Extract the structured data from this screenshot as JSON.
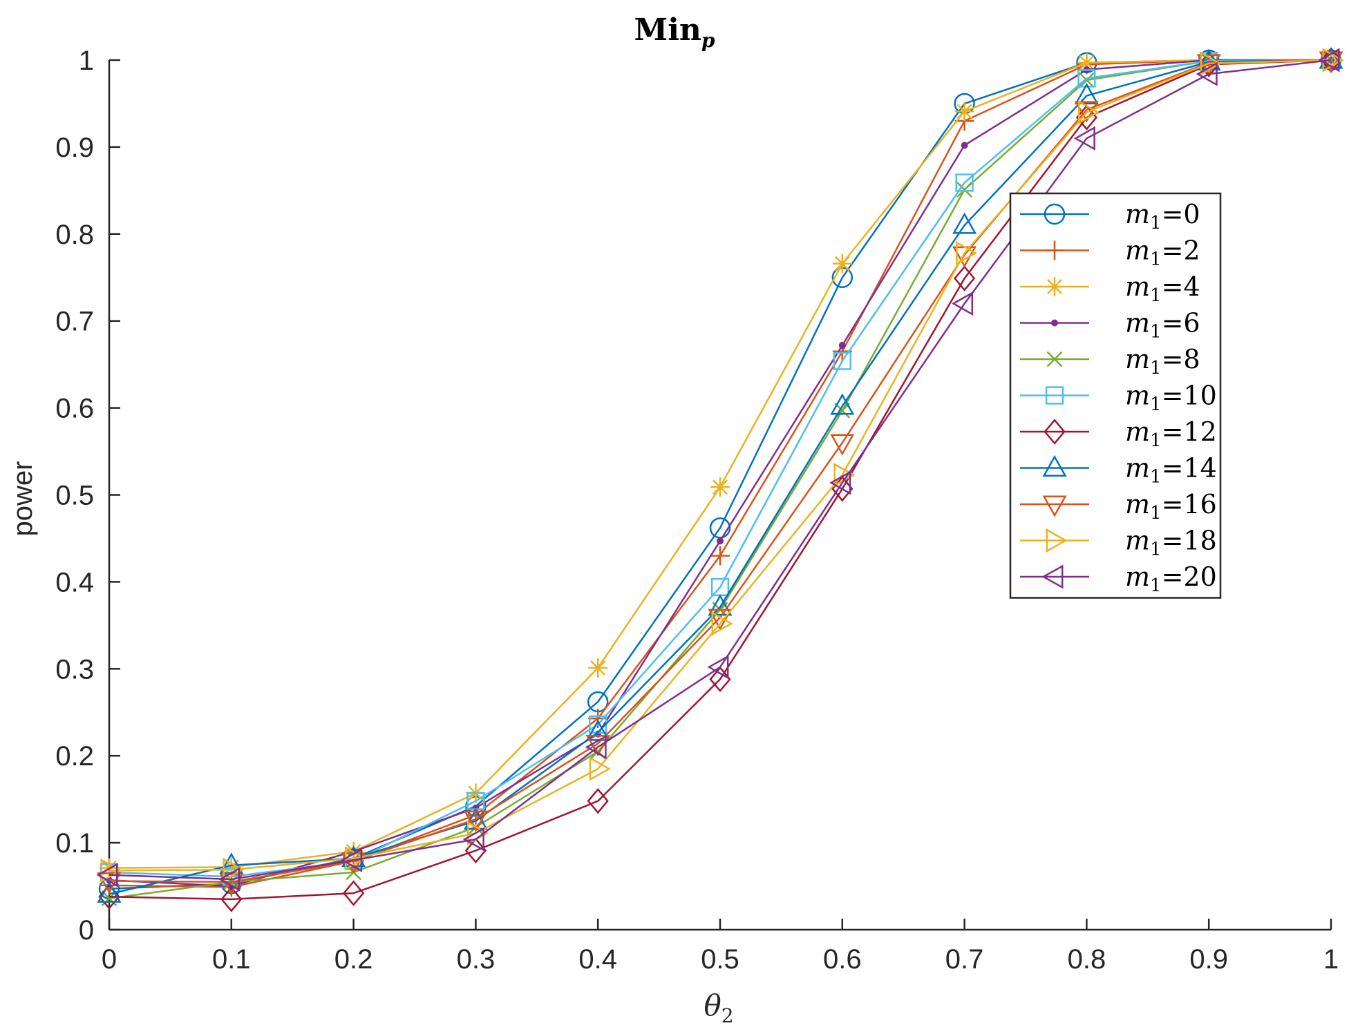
{
  "chart_data": {
    "type": "line",
    "title": "Min",
    "title_sub": "p",
    "xlabel": "θ",
    "xlabel_sub": "2",
    "ylabel": "power",
    "xlim": [
      0,
      1
    ],
    "ylim": [
      0,
      1
    ],
    "grid": false,
    "legend_position": "right",
    "x": [
      0,
      0.1,
      0.2,
      0.3,
      0.4,
      0.5,
      0.6,
      0.7,
      0.8,
      0.9,
      1
    ],
    "x_tick_labels": [
      "0",
      "0.1",
      "0.2",
      "0.3",
      "0.4",
      "0.5",
      "0.6",
      "0.7",
      "0.8",
      "0.9",
      "1"
    ],
    "y_tick_labels": [
      "0",
      "0.1",
      "0.2",
      "0.3",
      "0.4",
      "0.5",
      "0.6",
      "0.7",
      "0.8",
      "0.9",
      "1"
    ],
    "series": [
      {
        "name": "m1=0",
        "label_var": "m",
        "label_sub": "1",
        "label_val": "=0",
        "color": "#0072BD",
        "marker": "circle",
        "values": [
          0.047,
          0.053,
          0.082,
          0.142,
          0.262,
          0.462,
          0.75,
          0.95,
          0.997,
          1.0,
          1.0
        ]
      },
      {
        "name": "m1=2",
        "label_var": "m",
        "label_sub": "1",
        "label_val": "=2",
        "color": "#D95319",
        "marker": "plus",
        "values": [
          0.051,
          0.049,
          0.079,
          0.132,
          0.243,
          0.43,
          0.665,
          0.93,
          0.995,
          1.0,
          1.0
        ]
      },
      {
        "name": "m1=4",
        "label_var": "m",
        "label_sub": "1",
        "label_val": "=4",
        "color": "#EDB120",
        "marker": "asterisk",
        "values": [
          0.071,
          0.072,
          0.09,
          0.157,
          0.301,
          0.509,
          0.766,
          0.941,
          0.997,
          1.0,
          1.0
        ]
      },
      {
        "name": "m1=6",
        "label_var": "m",
        "label_sub": "1",
        "label_val": "=6",
        "color": "#7E2F8E",
        "marker": "dot",
        "values": [
          0.057,
          0.05,
          0.09,
          0.14,
          0.225,
          0.447,
          0.672,
          0.902,
          0.989,
          1.0,
          1.0
        ]
      },
      {
        "name": "m1=8",
        "label_var": "m",
        "label_sub": "1",
        "label_val": "=8",
        "color": "#77AC30",
        "marker": "x",
        "values": [
          0.036,
          0.055,
          0.066,
          0.118,
          0.205,
          0.368,
          0.597,
          0.851,
          0.977,
          0.999,
          1.0
        ]
      },
      {
        "name": "m1=10",
        "label_var": "m",
        "label_sub": "1",
        "label_val": "=10",
        "color": "#4DBEEE",
        "marker": "square",
        "values": [
          0.066,
          0.061,
          0.079,
          0.148,
          0.236,
          0.394,
          0.654,
          0.859,
          0.979,
          0.999,
          1.0
        ]
      },
      {
        "name": "m1=12",
        "label_var": "m",
        "label_sub": "1",
        "label_val": "=12",
        "color": "#A2142F",
        "marker": "diamond",
        "values": [
          0.038,
          0.035,
          0.042,
          0.091,
          0.148,
          0.288,
          0.507,
          0.749,
          0.934,
          0.995,
          1.0
        ]
      },
      {
        "name": "m1=14",
        "label_var": "m",
        "label_sub": "1",
        "label_val": "=14",
        "color": "#0072BD",
        "marker": "triangle-up",
        "values": [
          0.041,
          0.074,
          0.082,
          0.125,
          0.227,
          0.371,
          0.602,
          0.81,
          0.959,
          0.998,
          1.0
        ]
      },
      {
        "name": "m1=16",
        "label_var": "m",
        "label_sub": "1",
        "label_val": "=16",
        "color": "#D95319",
        "marker": "triangle-down",
        "values": [
          0.056,
          0.055,
          0.079,
          0.127,
          0.214,
          0.359,
          0.56,
          0.776,
          0.943,
          0.997,
          1.0
        ]
      },
      {
        "name": "m1=18",
        "label_var": "m",
        "label_sub": "1",
        "label_val": "=18",
        "color": "#EDB120",
        "marker": "triangle-right",
        "values": [
          0.068,
          0.069,
          0.082,
          0.111,
          0.185,
          0.352,
          0.523,
          0.778,
          0.94,
          0.996,
          1.0
        ]
      },
      {
        "name": "m1=20",
        "label_var": "m",
        "label_sub": "1",
        "label_val": "=20",
        "color": "#7E2F8E",
        "marker": "triangle-left",
        "values": [
          0.063,
          0.058,
          0.08,
          0.104,
          0.21,
          0.302,
          0.514,
          0.72,
          0.91,
          0.984,
          1.0
        ]
      }
    ]
  }
}
